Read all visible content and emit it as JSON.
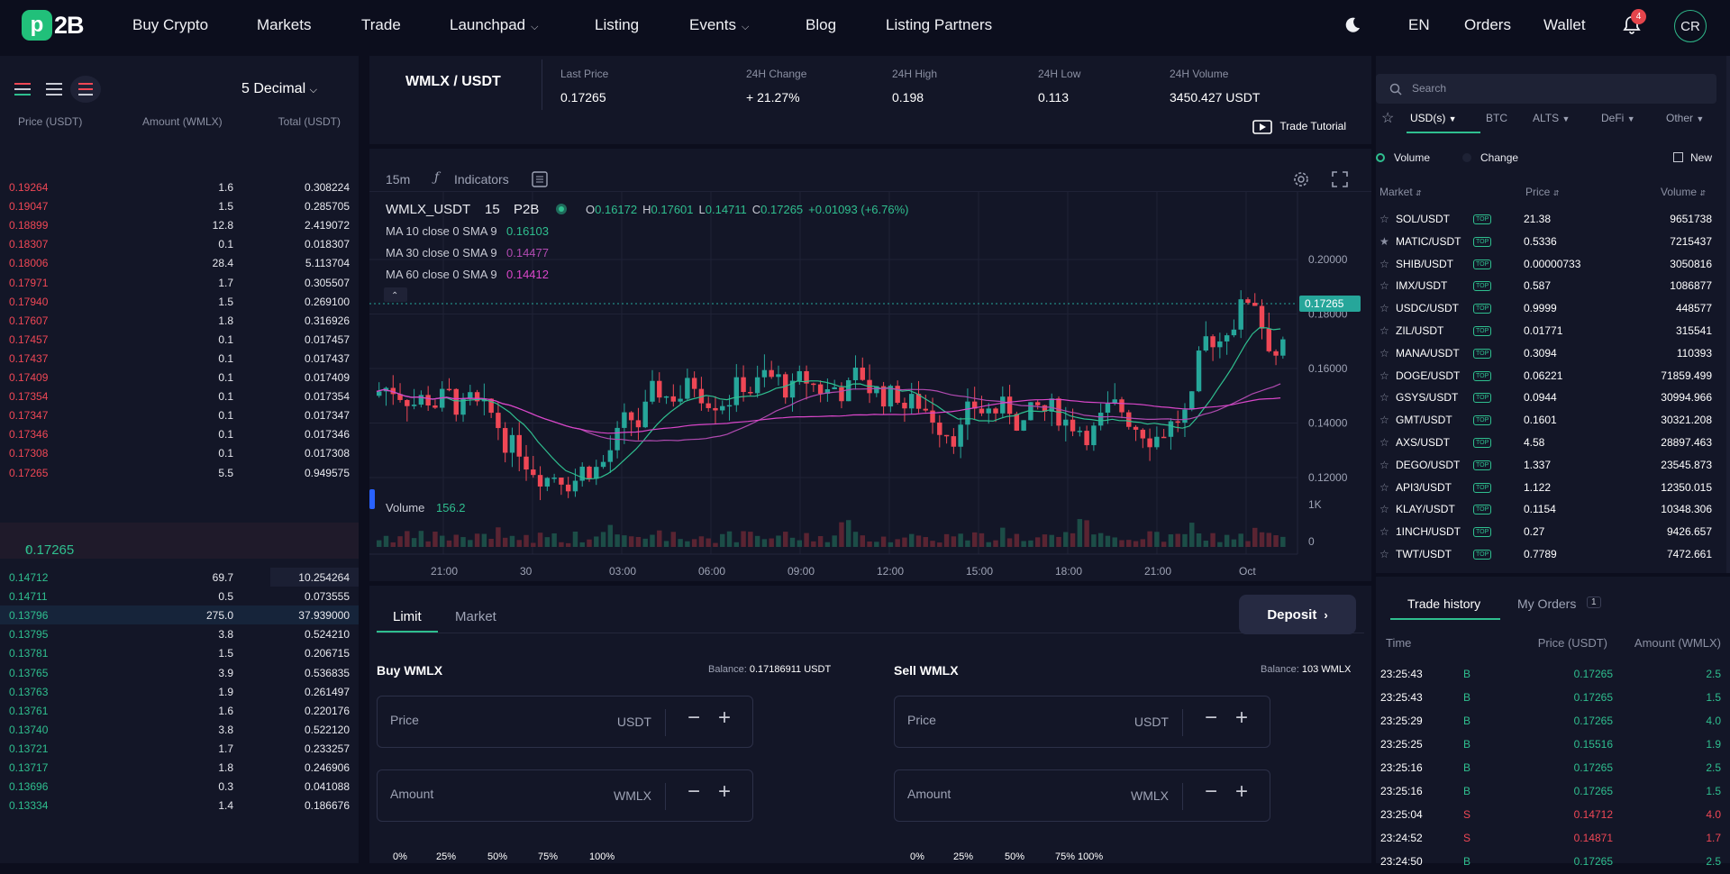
{
  "brand": {
    "logo_mark": "p",
    "logo_text": "2B"
  },
  "nav": {
    "buy_crypto": "Buy Crypto",
    "markets": "Markets",
    "trade": "Trade",
    "launchpad": "Launchpad",
    "listing": "Listing",
    "events": "Events",
    "blog": "Blog",
    "listing_partners": "Listing Partners",
    "lang": "EN",
    "orders": "Orders",
    "wallet": "Wallet",
    "notifications": "4",
    "avatar": "CR"
  },
  "orderbook": {
    "decimal": "5 Decimal",
    "col_price": "Price (USDT)",
    "col_amount": "Amount (WMLX)",
    "col_total": "Total (USDT)",
    "asks": [
      {
        "price": "0.19264",
        "amount": "1.6",
        "total": "0.308224"
      },
      {
        "price": "0.19047",
        "amount": "1.5",
        "total": "0.285705"
      },
      {
        "price": "0.18899",
        "amount": "12.8",
        "total": "2.419072"
      },
      {
        "price": "0.18307",
        "amount": "0.1",
        "total": "0.018307"
      },
      {
        "price": "0.18006",
        "amount": "28.4",
        "total": "5.113704"
      },
      {
        "price": "0.17971",
        "amount": "1.7",
        "total": "0.305507"
      },
      {
        "price": "0.17940",
        "amount": "1.5",
        "total": "0.269100"
      },
      {
        "price": "0.17607",
        "amount": "1.8",
        "total": "0.316926"
      },
      {
        "price": "0.17457",
        "amount": "0.1",
        "total": "0.017457"
      },
      {
        "price": "0.17437",
        "amount": "0.1",
        "total": "0.017437"
      },
      {
        "price": "0.17409",
        "amount": "0.1",
        "total": "0.017409"
      },
      {
        "price": "0.17354",
        "amount": "0.1",
        "total": "0.017354"
      },
      {
        "price": "0.17347",
        "amount": "0.1",
        "total": "0.017347"
      },
      {
        "price": "0.17346",
        "amount": "0.1",
        "total": "0.017346"
      },
      {
        "price": "0.17308",
        "amount": "0.1",
        "total": "0.017308"
      },
      {
        "price": "0.17265",
        "amount": "5.5",
        "total": "0.949575"
      }
    ],
    "mid_price": "0.17265",
    "bids": [
      {
        "price": "0.14712",
        "amount": "69.7",
        "total": "10.254264"
      },
      {
        "price": "0.14711",
        "amount": "0.5",
        "total": "0.073555"
      },
      {
        "price": "0.13796",
        "amount": "275.0",
        "total": "37.939000"
      },
      {
        "price": "0.13795",
        "amount": "3.8",
        "total": "0.524210"
      },
      {
        "price": "0.13781",
        "amount": "1.5",
        "total": "0.206715"
      },
      {
        "price": "0.13765",
        "amount": "3.9",
        "total": "0.536835"
      },
      {
        "price": "0.13763",
        "amount": "1.9",
        "total": "0.261497"
      },
      {
        "price": "0.13761",
        "amount": "1.6",
        "total": "0.220176"
      },
      {
        "price": "0.13740",
        "amount": "3.8",
        "total": "0.522120"
      },
      {
        "price": "0.13721",
        "amount": "1.7",
        "total": "0.233257"
      },
      {
        "price": "0.13717",
        "amount": "1.8",
        "total": "0.246906"
      },
      {
        "price": "0.13696",
        "amount": "0.3",
        "total": "0.041088"
      },
      {
        "price": "0.13334",
        "amount": "1.4",
        "total": "0.186676"
      }
    ]
  },
  "market": {
    "pair": "WMLX / USDT",
    "last_price_label": "Last Price",
    "last_price": "0.17265",
    "change_label": "24H Change",
    "change": "+ 21.27%",
    "high_label": "24H High",
    "high": "0.198",
    "low_label": "24H Low",
    "low": "0.113",
    "volume_label": "24H Volume",
    "volume": "3450.427 USDT",
    "tutorial": "Trade Tutorial"
  },
  "chart": {
    "interval": "15m",
    "indicators": "Indicators",
    "symbol": "WMLX_USDT",
    "tf": "15",
    "exchange": "P2B",
    "ohlc": {
      "o": "0.16172",
      "h": "0.17601",
      "l": "0.14711",
      "c": "0.17265",
      "chg": "+0.01093 (+6.76%)"
    },
    "ma10_label": "MA 10 close 0 SMA 9",
    "ma10": "0.16103",
    "ma30_label": "MA 30 close 0 SMA 9",
    "ma30": "0.14477",
    "ma60_label": "MA 60 close 0 SMA 9",
    "ma60": "0.14412",
    "volume_label": "Volume",
    "volume_value": "156.2",
    "price_tag": "0.17265",
    "y_ticks": [
      "0.20000",
      "0.18000",
      "0.16000",
      "0.14000",
      "0.12000"
    ],
    "vol_ticks": [
      "1K",
      "0"
    ],
    "x_ticks": [
      "21:00",
      "30",
      "03:00",
      "06:00",
      "09:00",
      "12:00",
      "15:00",
      "18:00",
      "21:00",
      "Oct"
    ],
    "colors": {
      "up": "#26a69a",
      "down": "#ef4755",
      "ma10": "#2fbf8f",
      "ma30": "#b04ab0",
      "ma60": "#d946c9"
    }
  },
  "trade_form": {
    "tab_limit": "Limit",
    "tab_market": "Market",
    "deposit": "Deposit",
    "buy_title": "Buy WMLX",
    "buy_balance_label": "Balance:",
    "buy_balance": "0.17186911 USDT",
    "sell_title": "Sell WMLX",
    "sell_balance_label": "Balance:",
    "sell_balance": "103 WMLX",
    "price_placeholder": "Price",
    "amount_placeholder": "Amount",
    "unit_usdt": "USDT",
    "unit_wmlx": "WMLX",
    "pcts": [
      "0%",
      "25%",
      "50%",
      "75%",
      "100%"
    ]
  },
  "markets_panel": {
    "search_placeholder": "Search",
    "categories": [
      "USD(s)",
      "BTC",
      "ALTS",
      "DeFi",
      "Other"
    ],
    "opt_volume": "Volume",
    "opt_change": "Change",
    "opt_new": "New",
    "col_market": "Market",
    "col_price": "Price",
    "col_volume": "Volume",
    "top_badge": "TOP",
    "rows": [
      {
        "market": "SOL/USDT",
        "price": "21.38",
        "volume": "9651738",
        "starred": false
      },
      {
        "market": "MATIC/USDT",
        "price": "0.5336",
        "volume": "7215437",
        "starred": true
      },
      {
        "market": "SHIB/USDT",
        "price": "0.00000733",
        "volume": "3050816",
        "starred": false
      },
      {
        "market": "IMX/USDT",
        "price": "0.587",
        "volume": "1086877",
        "starred": false
      },
      {
        "market": "USDC/USDT",
        "price": "0.9999",
        "volume": "448577",
        "starred": false
      },
      {
        "market": "ZIL/USDT",
        "price": "0.01771",
        "volume": "315541",
        "starred": false
      },
      {
        "market": "MANA/USDT",
        "price": "0.3094",
        "volume": "110393",
        "starred": false
      },
      {
        "market": "DOGE/USDT",
        "price": "0.06221",
        "volume": "71859.499",
        "starred": false
      },
      {
        "market": "GSYS/USDT",
        "price": "0.0944",
        "volume": "30994.966",
        "starred": false
      },
      {
        "market": "GMT/USDT",
        "price": "0.1601",
        "volume": "30321.208",
        "starred": false
      },
      {
        "market": "AXS/USDT",
        "price": "4.58",
        "volume": "28897.463",
        "starred": false
      },
      {
        "market": "DEGO/USDT",
        "price": "1.337",
        "volume": "23545.873",
        "starred": false
      },
      {
        "market": "API3/USDT",
        "price": "1.122",
        "volume": "12350.015",
        "starred": false
      },
      {
        "market": "KLAY/USDT",
        "price": "0.1154",
        "volume": "10348.306",
        "starred": false
      },
      {
        "market": "1INCH/USDT",
        "price": "0.27",
        "volume": "9426.657",
        "starred": false
      },
      {
        "market": "TWT/USDT",
        "price": "0.7789",
        "volume": "7472.661",
        "starred": false
      }
    ]
  },
  "trade_history": {
    "tab_history": "Trade history",
    "tab_orders": "My Orders",
    "orders_count": "1",
    "col_time": "Time",
    "col_price": "Price (USDT)",
    "col_amount": "Amount (WMLX)",
    "rows": [
      {
        "time": "23:25:43",
        "side": "B",
        "price": "0.17265",
        "amount": "2.5"
      },
      {
        "time": "23:25:43",
        "side": "B",
        "price": "0.17265",
        "amount": "1.5"
      },
      {
        "time": "23:25:29",
        "side": "B",
        "price": "0.17265",
        "amount": "4.0"
      },
      {
        "time": "23:25:25",
        "side": "B",
        "price": "0.15516",
        "amount": "1.9"
      },
      {
        "time": "23:25:16",
        "side": "B",
        "price": "0.17265",
        "amount": "2.5"
      },
      {
        "time": "23:25:16",
        "side": "B",
        "price": "0.17265",
        "amount": "1.5"
      },
      {
        "time": "23:25:04",
        "side": "S",
        "price": "0.14712",
        "amount": "4.0"
      },
      {
        "time": "23:24:52",
        "side": "S",
        "price": "0.14871",
        "amount": "1.7"
      },
      {
        "time": "23:24:50",
        "side": "B",
        "price": "0.17265",
        "amount": "2.5"
      }
    ]
  }
}
